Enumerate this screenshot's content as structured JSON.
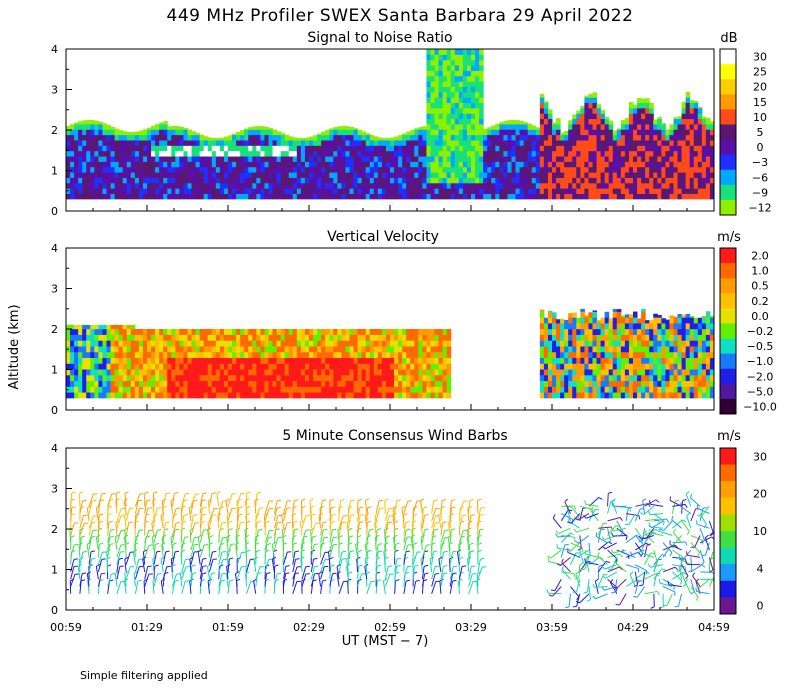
{
  "figure": {
    "title": "449 MHz Profiler SWEX Santa Barbara 29 April 2022",
    "ylabel": "Altitude (km)",
    "xlabel": "UT  (MST − 7)",
    "footnote": "Simple filtering applied"
  },
  "chart_data": [
    {
      "type": "heatmap",
      "title": "Signal to Noise Ratio",
      "unit": "dB",
      "xlim_hours": [
        0.983,
        4.983
      ],
      "ylim": [
        0,
        4
      ],
      "yticks": [
        "0",
        "1",
        "2",
        "3",
        "4"
      ],
      "colorbar": {
        "labels": [
          "30",
          "25",
          "20",
          "15",
          "10",
          "5",
          "0",
          "−3",
          "−6",
          "−9",
          "−12"
        ],
        "colors": [
          "#ffffff",
          "#ffff00",
          "#ffd000",
          "#ff9a00",
          "#ff4a1a",
          "#5a1870",
          "#5a0fa8",
          "#1f2fff",
          "#00a8ff",
          "#19e07a",
          "#8ef000"
        ]
      }
    },
    {
      "type": "heatmap",
      "title": "Vertical Velocity",
      "unit": "m/s",
      "xlim_hours": [
        0.983,
        4.983
      ],
      "ylim": [
        0,
        4
      ],
      "yticks": [
        "0",
        "1",
        "2",
        "3",
        "4"
      ],
      "colorbar": {
        "labels": [
          "2.0",
          "1.0",
          "0.5",
          "0.2",
          "0.0",
          "−0.2",
          "−0.5",
          "−1.0",
          "−2.0",
          "−5.0",
          "−10.0"
        ],
        "colors": [
          "#ff1a1a",
          "#ff6a00",
          "#ff9a00",
          "#ffc000",
          "#e8e000",
          "#60f000",
          "#10e0c0",
          "#1a7aff",
          "#1f1fe8",
          "#5018a0",
          "#300030"
        ]
      }
    },
    {
      "type": "wind_barbs",
      "title": "5 Minute Consensus Wind Barbs",
      "unit": "m/s",
      "xlim_hours": [
        0.983,
        4.983
      ],
      "ylim": [
        0,
        4
      ],
      "yticks": [
        "0",
        "1",
        "2",
        "3",
        "4"
      ],
      "colorbar": {
        "labels": [
          "30",
          "20",
          "10",
          "4",
          "0"
        ],
        "colors": [
          "#ff1a1a",
          "#ff6a00",
          "#ffa000",
          "#ffc000",
          "#a0e000",
          "#40e040",
          "#10d8b0",
          "#1a9aff",
          "#1a1ae8",
          "#6a1890"
        ]
      },
      "data_gap_hours": [
        3.55,
        3.983
      ]
    }
  ],
  "x_axis": {
    "tick_labels": [
      "00:59",
      "01:29",
      "01:59",
      "02:29",
      "02:59",
      "03:29",
      "03:59",
      "04:29",
      "04:59"
    ],
    "tick_hours": [
      0.983,
      1.483,
      1.983,
      2.483,
      2.983,
      3.483,
      3.983,
      4.483,
      4.983
    ]
  }
}
